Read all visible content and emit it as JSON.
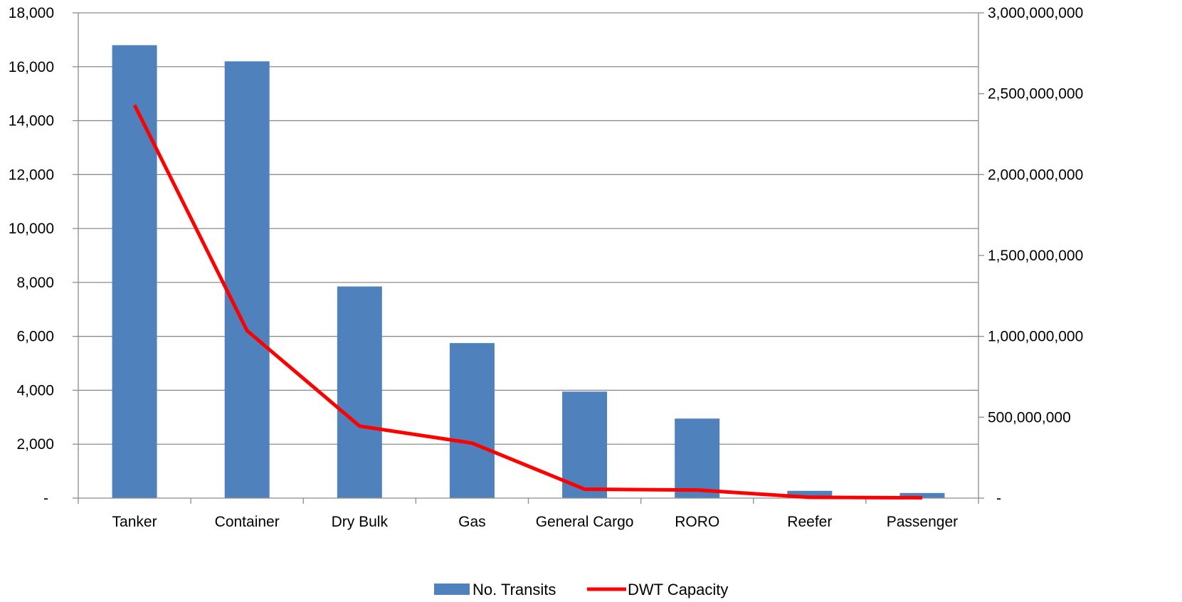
{
  "chart_data": {
    "type": "bar",
    "categories": [
      "Tanker",
      "Container",
      "Dry Bulk",
      "Gas",
      "General Cargo",
      "RORO",
      "Reefer",
      "Passenger"
    ],
    "series": [
      {
        "name": "No. Transits",
        "type": "bar",
        "axis": "left",
        "color": "#4F81BD",
        "values": [
          16800,
          16200,
          7850,
          5750,
          3950,
          2950,
          270,
          190
        ]
      },
      {
        "name": "DWT Capacity",
        "type": "line",
        "axis": "right",
        "color": "#FF0000",
        "values": [
          2430000000,
          1035000000,
          445000000,
          340000000,
          55000000,
          50000000,
          5000000,
          2000000
        ]
      }
    ],
    "y_left": {
      "range": [
        0,
        18000
      ],
      "ticks": [
        0,
        2000,
        4000,
        6000,
        8000,
        10000,
        12000,
        14000,
        16000,
        18000
      ],
      "tick_labels": [
        "-",
        "2,000",
        "4,000",
        "6,000",
        "8,000",
        "10,000",
        "12,000",
        "14,000",
        "16,000",
        "18,000"
      ]
    },
    "y_right": {
      "range": [
        0,
        3000000000
      ],
      "ticks": [
        0,
        500000000,
        1000000000,
        1500000000,
        2000000000,
        2500000000,
        3000000000
      ],
      "tick_labels": [
        "-",
        "500,000,000",
        "1,000,000,000",
        "1,500,000,000",
        "2,000,000,000",
        "2,500,000,000",
        "3,000,000,000"
      ]
    },
    "grid": true,
    "legend_position": "bottom-center",
    "title": "",
    "xlabel": "",
    "ylabel": ""
  }
}
